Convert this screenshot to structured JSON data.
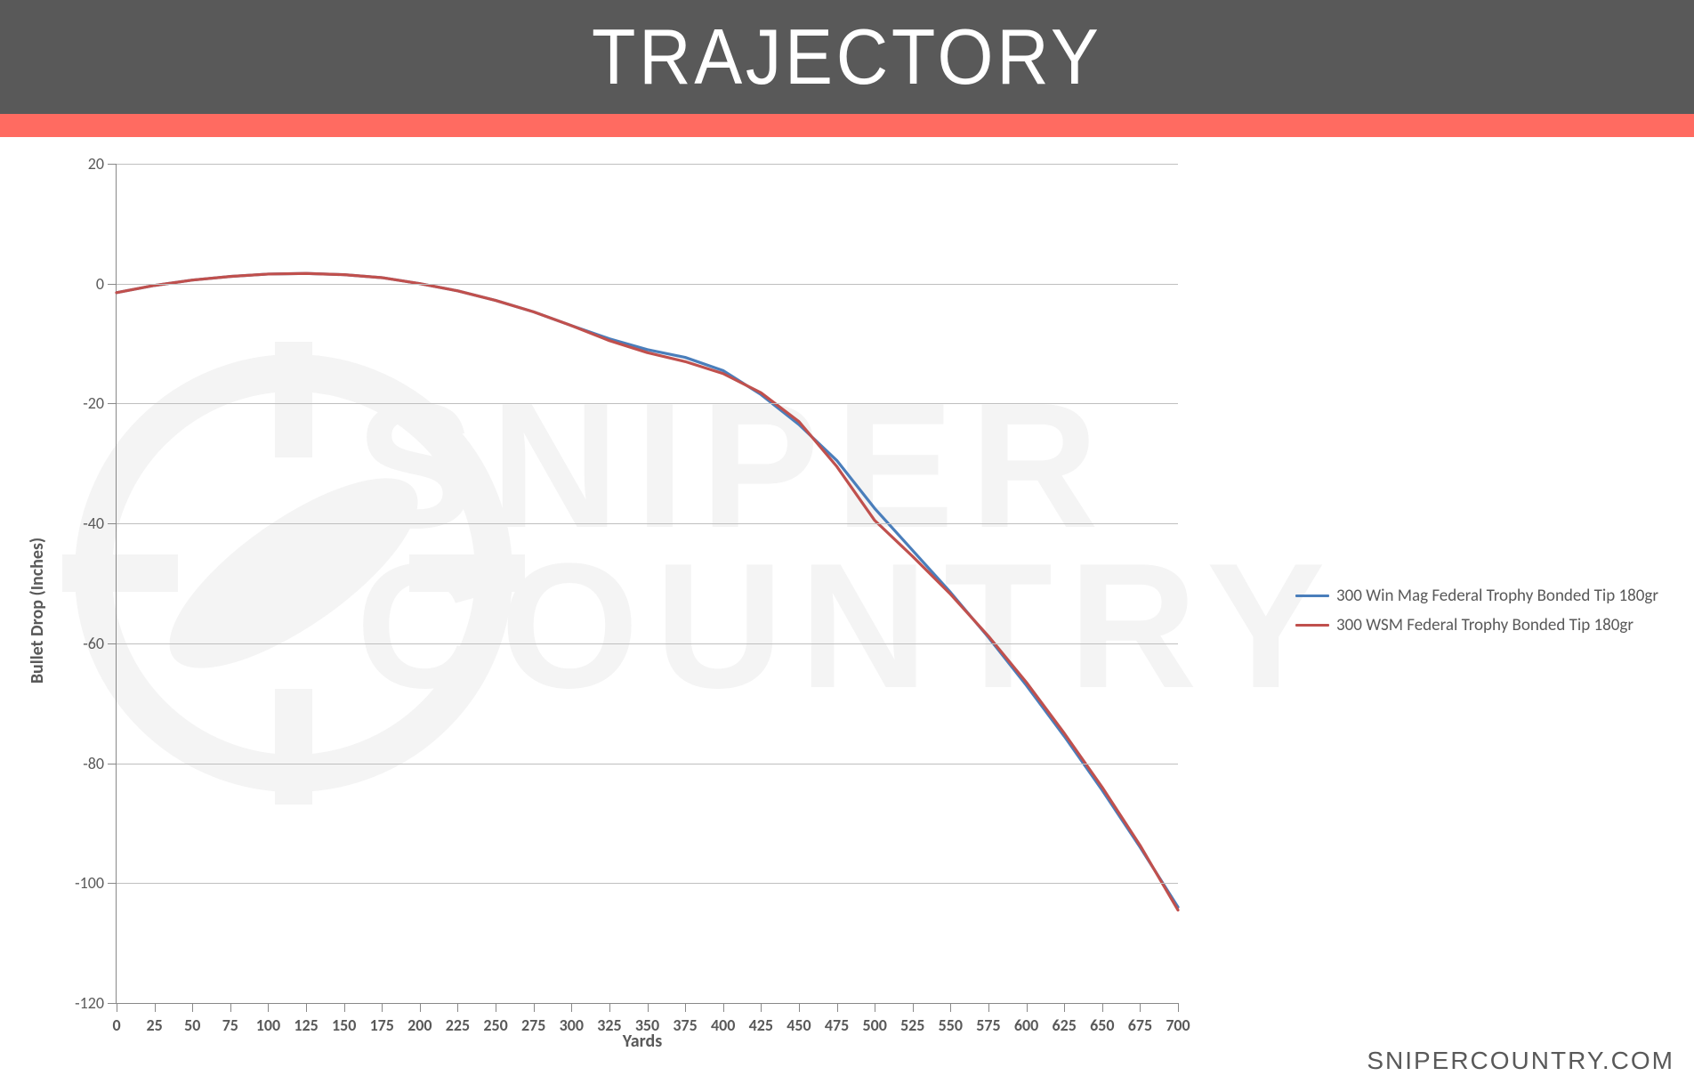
{
  "header": {
    "title": "TRAJECTORY",
    "bg_color": "#595959",
    "title_color": "#ffffff",
    "title_fontsize": 88,
    "accent_color": "#ff6b61"
  },
  "footer": {
    "brand": "SNIPERCOUNTRY.COM"
  },
  "watermark": {
    "line1": "SNIPER",
    "line2": "COUNTRY",
    "color": "#f4f4f4",
    "scope_color": "#f4f4f4"
  },
  "chart": {
    "type": "line",
    "x_label": "Yards",
    "y_label": "Bullet Drop (Inches)",
    "x_min": 0,
    "x_max": 700,
    "x_tick_step": 25,
    "y_min": -120,
    "y_max": 20,
    "y_tick_step": 20,
    "grid_color": "#bfbfbf",
    "axis_color": "#888888",
    "tick_label_color": "#595959",
    "tick_fontsize": 18,
    "axis_label_fontsize": 20,
    "line_width": 3.2,
    "background_color": "#ffffff",
    "series": [
      {
        "name": "300 Win Mag Federal Trophy Bonded Tip 180gr",
        "color": "#4a7ebb",
        "x": [
          0,
          25,
          50,
          75,
          100,
          125,
          150,
          175,
          200,
          225,
          250,
          275,
          300,
          325,
          350,
          375,
          400,
          425,
          450,
          475,
          500,
          525,
          550,
          575,
          600,
          625,
          650,
          675,
          700
        ],
        "y": [
          -1.5,
          -0.3,
          0.6,
          1.2,
          1.6,
          1.7,
          1.5,
          1.0,
          0.0,
          -1.2,
          -2.8,
          -4.7,
          -7.0,
          -9.2,
          -11.0,
          -12.3,
          -14.5,
          -18.5,
          -23.5,
          -29.5,
          -37.5,
          -44.5,
          -51.5,
          -59.0,
          -67.0,
          -75.5,
          -84.5,
          -94.0,
          -104.0
        ]
      },
      {
        "name": "300 WSM Federal Trophy Bonded Tip 180gr",
        "color": "#c0504d",
        "x": [
          0,
          25,
          50,
          75,
          100,
          125,
          150,
          175,
          200,
          225,
          250,
          275,
          300,
          325,
          350,
          375,
          400,
          425,
          450,
          475,
          500,
          525,
          550,
          575,
          600,
          625,
          650,
          675,
          700
        ],
        "y": [
          -1.5,
          -0.3,
          0.6,
          1.2,
          1.6,
          1.7,
          1.5,
          1.0,
          0.0,
          -1.2,
          -2.8,
          -4.7,
          -7.0,
          -9.5,
          -11.5,
          -13.0,
          -15.0,
          -18.2,
          -23.0,
          -30.5,
          -39.5,
          -45.5,
          -51.8,
          -58.8,
          -66.5,
          -75.0,
          -84.0,
          -93.7,
          -104.5
        ]
      }
    ]
  }
}
